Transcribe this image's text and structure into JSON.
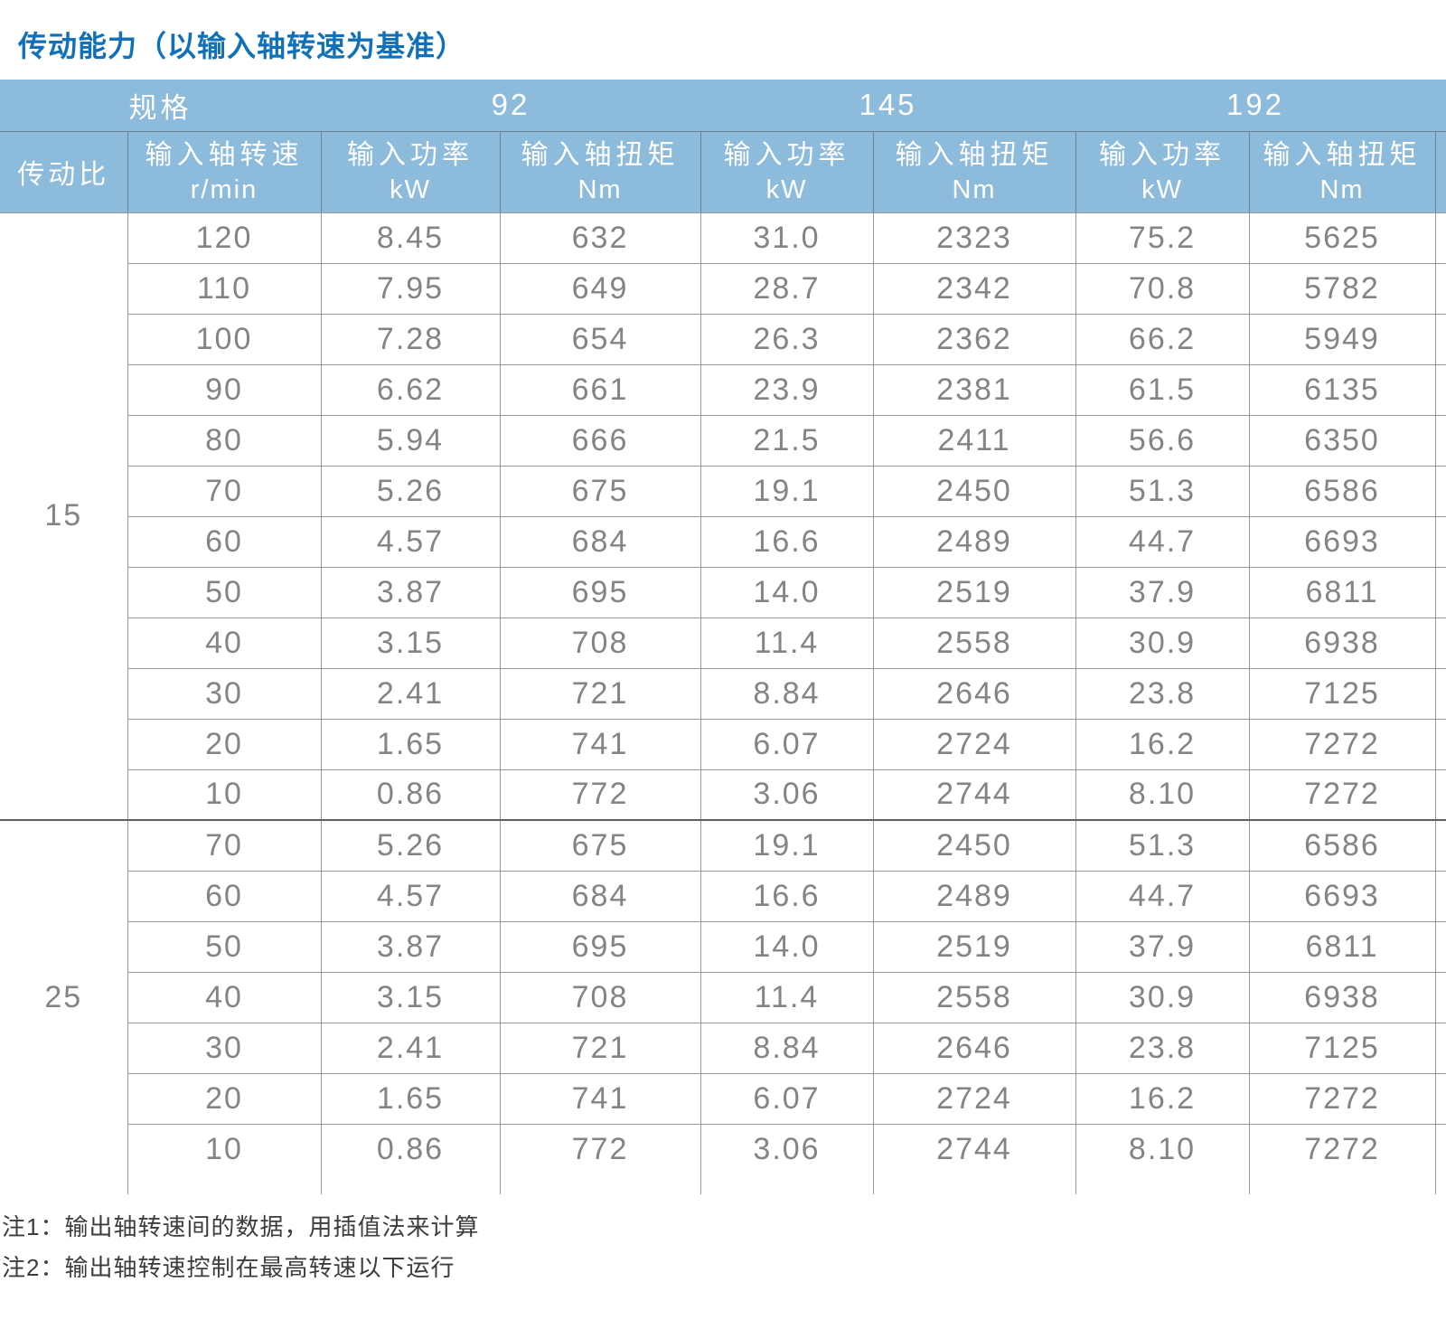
{
  "page_title": "传动能力（以输入轴转速为基准）",
  "table": {
    "spec_label": "规格",
    "ratio_label": "传动比",
    "sizes": [
      "92",
      "145",
      "192"
    ],
    "columns": [
      {
        "title": "输入轴转速",
        "unit": "r/min"
      },
      {
        "title": "输入功率",
        "unit": "kW"
      },
      {
        "title": "输入轴扭矩",
        "unit": "Nm"
      },
      {
        "title": "输入功率",
        "unit": "kW"
      },
      {
        "title": "输入轴扭矩",
        "unit": "Nm"
      },
      {
        "title": "输入功率",
        "unit": "kW"
      },
      {
        "title": "输入轴扭矩",
        "unit": "Nm"
      }
    ],
    "groups": [
      {
        "ratio": "15",
        "rows": [
          [
            "120",
            "8.45",
            "632",
            "31.0",
            "2323",
            "75.2",
            "5625"
          ],
          [
            "110",
            "7.95",
            "649",
            "28.7",
            "2342",
            "70.8",
            "5782"
          ],
          [
            "100",
            "7.28",
            "654",
            "26.3",
            "2362",
            "66.2",
            "5949"
          ],
          [
            "90",
            "6.62",
            "661",
            "23.9",
            "2381",
            "61.5",
            "6135"
          ],
          [
            "80",
            "5.94",
            "666",
            "21.5",
            "2411",
            "56.6",
            "6350"
          ],
          [
            "70",
            "5.26",
            "675",
            "19.1",
            "2450",
            "51.3",
            "6586"
          ],
          [
            "60",
            "4.57",
            "684",
            "16.6",
            "2489",
            "44.7",
            "6693"
          ],
          [
            "50",
            "3.87",
            "695",
            "14.0",
            "2519",
            "37.9",
            "6811"
          ],
          [
            "40",
            "3.15",
            "708",
            "11.4",
            "2558",
            "30.9",
            "6938"
          ],
          [
            "30",
            "2.41",
            "721",
            "8.84",
            "2646",
            "23.8",
            "7125"
          ],
          [
            "20",
            "1.65",
            "741",
            "6.07",
            "2724",
            "16.2",
            "7272"
          ],
          [
            "10",
            "0.86",
            "772",
            "3.06",
            "2744",
            "8.10",
            "7272"
          ]
        ]
      },
      {
        "ratio": "25",
        "rows": [
          [
            "70",
            "5.26",
            "675",
            "19.1",
            "2450",
            "51.3",
            "6586"
          ],
          [
            "60",
            "4.57",
            "684",
            "16.6",
            "2489",
            "44.7",
            "6693"
          ],
          [
            "50",
            "3.87",
            "695",
            "14.0",
            "2519",
            "37.9",
            "6811"
          ],
          [
            "40",
            "3.15",
            "708",
            "11.4",
            "2558",
            "30.9",
            "6938"
          ],
          [
            "30",
            "2.41",
            "721",
            "8.84",
            "2646",
            "23.8",
            "7125"
          ],
          [
            "20",
            "1.65",
            "741",
            "6.07",
            "2724",
            "16.2",
            "7272"
          ],
          [
            "10",
            "0.86",
            "772",
            "3.06",
            "2744",
            "8.10",
            "7272"
          ]
        ]
      }
    ]
  },
  "notes": [
    "注1：输出轴转速间的数据，用插值法来计算",
    "注2：输出轴转速控制在最高转速以下运行"
  ],
  "colors": {
    "header_bg": "#8dbbdc",
    "header_line": "#6e7f8d",
    "grid_line": "#999999",
    "group_line": "#5e5e5e",
    "cell_text": "#848484",
    "title_color": "#1171b8",
    "note_color": "#3d3d3d"
  }
}
